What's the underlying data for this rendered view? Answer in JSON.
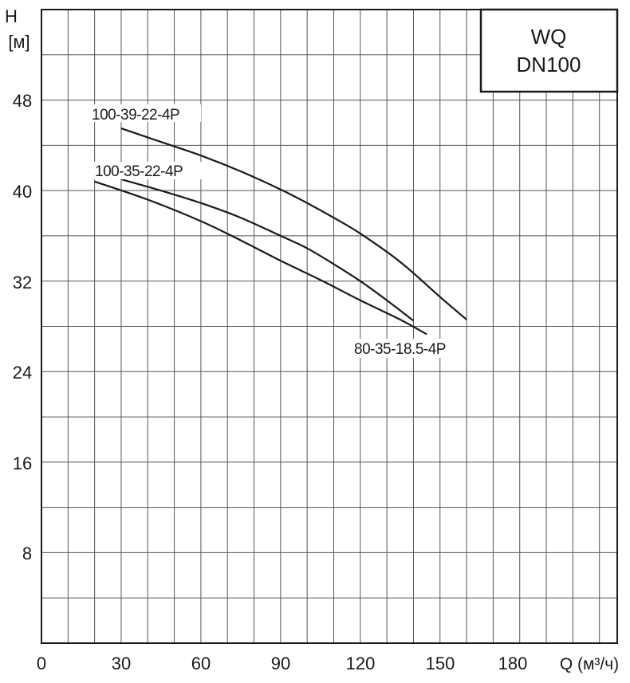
{
  "chart_data": {
    "type": "line",
    "title": "WQ DN100",
    "title_lines": [
      "WQ",
      "DN100"
    ],
    "xlabel": "Q (м³/ч)",
    "ylabel_lines": [
      "H",
      "[м]"
    ],
    "xlim": [
      0,
      216.7
    ],
    "ylim": [
      0,
      56
    ],
    "x_ticks": [
      0,
      30,
      60,
      90,
      120,
      150,
      180
    ],
    "y_ticks": [
      8,
      16,
      24,
      32,
      40,
      48
    ],
    "x_grid_step": 10,
    "y_grid_step": 4,
    "grid": true,
    "series": [
      {
        "name": "100-39-22-4P",
        "x": [
          30,
          45,
          60,
          75,
          90,
          100,
          110,
          120,
          135,
          150,
          160
        ],
        "y": [
          45.5,
          44.3,
          43.1,
          41.7,
          40.1,
          38.9,
          37.6,
          36.2,
          33.7,
          30.6,
          28.6
        ]
      },
      {
        "name": "100-35-22-4P",
        "x": [
          30,
          45,
          60,
          75,
          90,
          100,
          110,
          120,
          130,
          140
        ],
        "y": [
          41.0,
          40.0,
          38.9,
          37.6,
          36.0,
          34.9,
          33.5,
          32.0,
          30.3,
          28.5
        ]
      },
      {
        "name": "80-35-18.5-4P",
        "x": [
          20,
          40,
          60,
          75,
          90,
          105,
          120,
          135,
          145
        ],
        "y": [
          40.8,
          39.2,
          37.3,
          35.6,
          33.8,
          32.1,
          30.3,
          28.6,
          27.3
        ]
      }
    ],
    "annotations": [
      {
        "text": "100-39-22-4P",
        "x": 19,
        "y": 46.3
      },
      {
        "text": "100-35-22-4P",
        "x": 20,
        "y": 41.0
      },
      {
        "text": "80-35-18.5-4P",
        "x": 118,
        "y": 26.3
      }
    ]
  },
  "labels": {
    "y_axis_top": "H",
    "y_axis_unit": "[м]",
    "x_axis": "Q (м³/ч)",
    "title_line1": "WQ",
    "title_line2": "DN100",
    "curve1": "100-39-22-4P",
    "curve2": "100-35-22-4P",
    "curve3": "80-35-18.5-4P",
    "xt0": "0",
    "xt1": "30",
    "xt2": "60",
    "xt3": "90",
    "xt4": "120",
    "xt5": "150",
    "xt6": "180",
    "yt8": "8",
    "yt16": "16",
    "yt24": "24",
    "yt32": "32",
    "yt40": "40",
    "yt48": "48"
  },
  "colors": {
    "line": "#1a1a1a",
    "grid": "#555555",
    "background": "#ffffff"
  }
}
